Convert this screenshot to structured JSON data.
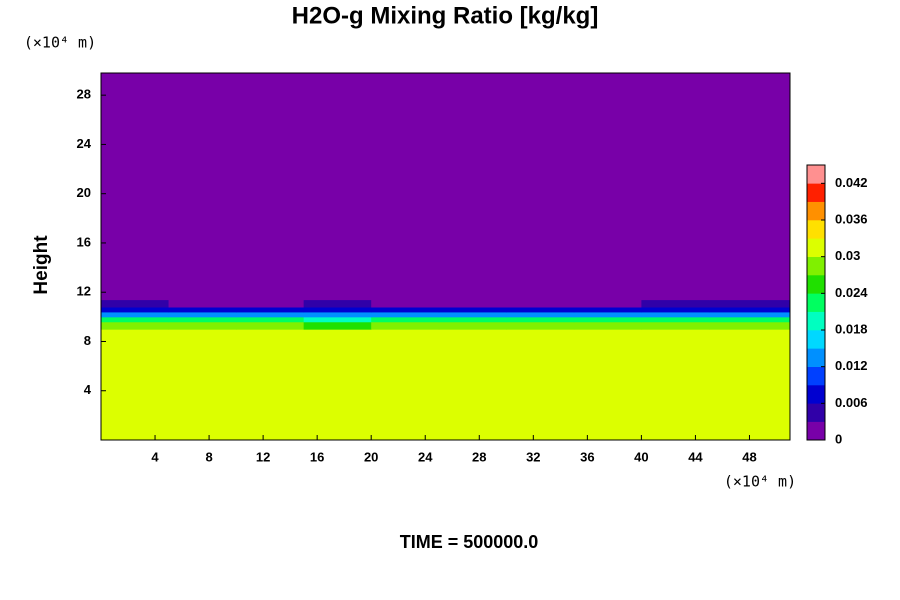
{
  "chart_data": {
    "type": "heatmap",
    "title": "H2O-g Mixing Ratio [kg/kg]",
    "y_label": "Height",
    "x_unit": "(×10⁴ m)",
    "y_unit": "(×10⁴ m)",
    "time_label": "TIME = 500000.0",
    "xlim": [
      0,
      51
    ],
    "xticks": [
      4,
      8,
      12,
      16,
      20,
      24,
      28,
      32,
      36,
      40,
      44,
      48
    ],
    "ylim": [
      0,
      29.8
    ],
    "yticks": [
      4,
      8,
      12,
      16,
      20,
      24,
      28
    ],
    "xbins": [
      0,
      5,
      10,
      15,
      20,
      25,
      30,
      35,
      40,
      45,
      51
    ],
    "ybins": [
      0,
      9,
      9.6,
      10,
      10.4,
      10.8,
      11.4,
      29.8
    ],
    "z": [
      [
        0.03,
        0.03,
        0.03,
        0.03,
        0.03,
        0.03,
        0.03,
        0.03,
        0.03,
        0.03
      ],
      [
        0.028,
        0.028,
        0.028,
        0.024,
        0.028,
        0.028,
        0.028,
        0.028,
        0.028,
        0.028
      ],
      [
        0.021,
        0.021,
        0.021,
        0.018,
        0.021,
        0.021,
        0.021,
        0.021,
        0.021,
        0.021
      ],
      [
        0.012,
        0.012,
        0.012,
        0.012,
        0.012,
        0.012,
        0.012,
        0.012,
        0.012,
        0.012
      ],
      [
        0.006,
        0.006,
        0.006,
        0.006,
        0.006,
        0.006,
        0.006,
        0.006,
        0.006,
        0.006
      ],
      [
        0.003,
        0,
        0,
        0.003,
        0,
        0,
        0,
        0,
        0.003,
        0.003
      ],
      [
        0,
        0,
        0,
        0,
        0,
        0,
        0,
        0,
        0,
        0
      ]
    ],
    "colorbar": {
      "lim": [
        0,
        0.045
      ],
      "ticks": [
        0,
        0.006,
        0.012,
        0.018,
        0.024,
        0.03,
        0.036,
        0.042
      ],
      "colors": [
        "#7800a8",
        "#3000a8",
        "#0000d0",
        "#0040ff",
        "#0090ff",
        "#00d8ff",
        "#00ffc0",
        "#00ff60",
        "#20e000",
        "#80f000",
        "#dcff00",
        "#ffe000",
        "#ff9000",
        "#ff2000",
        "#ff9090"
      ]
    }
  }
}
